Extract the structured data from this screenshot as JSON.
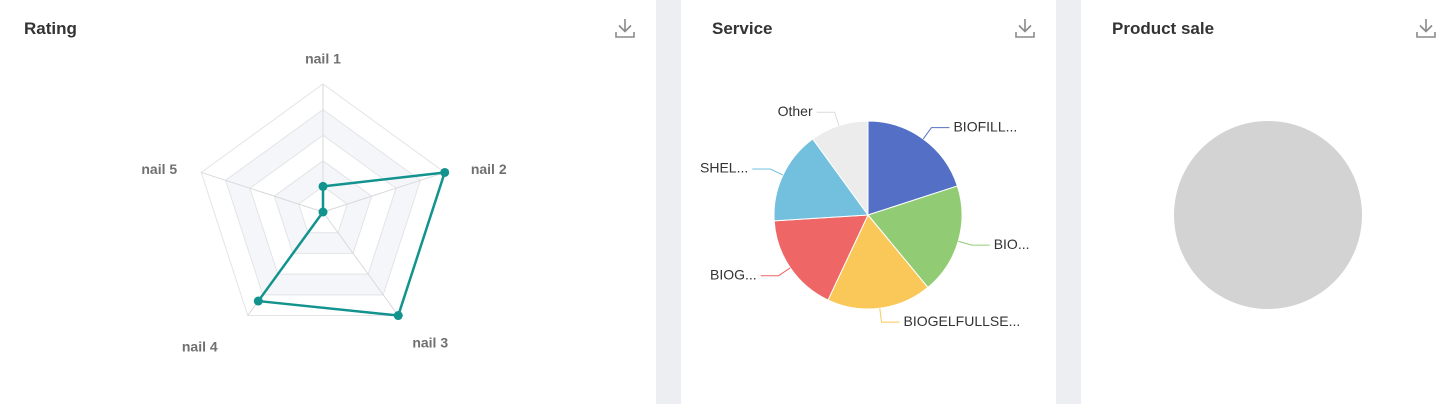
{
  "cards": {
    "rating": {
      "title": "Rating"
    },
    "service": {
      "title": "Service"
    },
    "product": {
      "title": "Product sale"
    }
  },
  "icons": {
    "download": "download-icon"
  },
  "chart_data": [
    {
      "type": "radar",
      "title": "Rating",
      "indicators": [
        "nail 1",
        "nail 2",
        "nail 3",
        "nail 4",
        "nail 5"
      ],
      "max": 5,
      "series": [
        {
          "values": [
            1.0,
            5.0,
            5.0,
            4.3,
            0.0
          ],
          "color": "#13938e"
        }
      ],
      "split_number": 5
    },
    {
      "type": "pie",
      "title": "Service",
      "labels": [
        "BIOFILL...",
        "BIO...",
        "BIOGELFULLSE...",
        "BIOG...",
        "SHEL...",
        "Other"
      ],
      "values": [
        20,
        19,
        18,
        17,
        16,
        10
      ],
      "colors": [
        "#5470c6",
        "#91cc75",
        "#fac858",
        "#ee6666",
        "#73c0de",
        "#ececec"
      ]
    },
    {
      "type": "pie",
      "title": "Product sale",
      "labels": [],
      "values": [],
      "empty": true,
      "colors": [
        "#d3d3d3"
      ]
    }
  ]
}
